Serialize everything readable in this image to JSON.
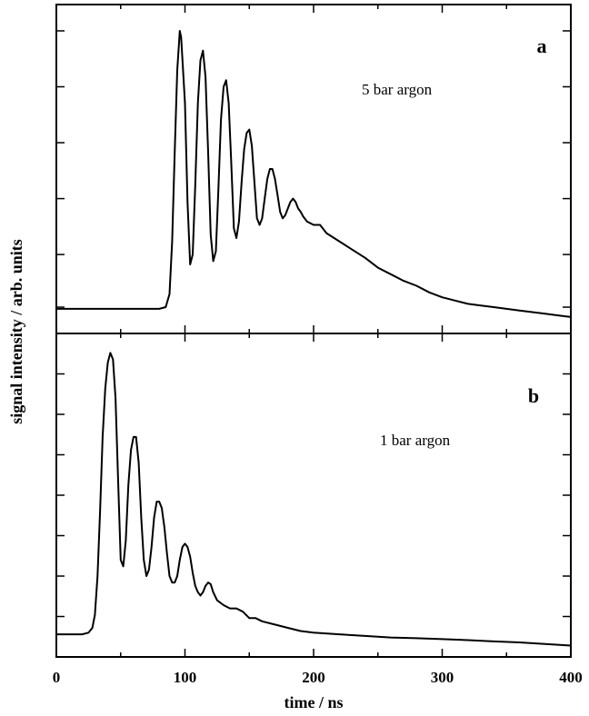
{
  "chart_data": [
    {
      "type": "line",
      "panel_label": "a",
      "annotation": "5 bar argon",
      "xlabel": "time / ns",
      "ylabel": "signal intensity / arb. units",
      "xlim": [
        0,
        400
      ],
      "ylim": [
        0,
        1
      ],
      "y_ticks_labeled": false,
      "series": [
        {
          "x": [
            0,
            20,
            40,
            60,
            80,
            85,
            88,
            90,
            92,
            94,
            96,
            97,
            100,
            102,
            104,
            106,
            108,
            110,
            112,
            114,
            116,
            118,
            120,
            122,
            124,
            126,
            128,
            130,
            132,
            134,
            136,
            138,
            140,
            142,
            144,
            146,
            148,
            150,
            152,
            154,
            156,
            158,
            160,
            162,
            164,
            166,
            168,
            170,
            172,
            174,
            176,
            178,
            180,
            182,
            184,
            186,
            188,
            190,
            192,
            195,
            200,
            205,
            210,
            220,
            230,
            240,
            250,
            260,
            270,
            280,
            290,
            300,
            310,
            320,
            330,
            340,
            350,
            360,
            370,
            380,
            390,
            400
          ],
          "y": [
            0.075,
            0.075,
            0.075,
            0.075,
            0.075,
            0.08,
            0.12,
            0.28,
            0.55,
            0.8,
            0.92,
            0.9,
            0.7,
            0.4,
            0.21,
            0.24,
            0.45,
            0.7,
            0.83,
            0.86,
            0.78,
            0.55,
            0.3,
            0.22,
            0.25,
            0.44,
            0.65,
            0.75,
            0.77,
            0.7,
            0.52,
            0.32,
            0.29,
            0.34,
            0.46,
            0.56,
            0.61,
            0.62,
            0.57,
            0.46,
            0.35,
            0.33,
            0.35,
            0.41,
            0.47,
            0.5,
            0.5,
            0.47,
            0.42,
            0.37,
            0.35,
            0.36,
            0.38,
            0.4,
            0.41,
            0.4,
            0.38,
            0.37,
            0.355,
            0.34,
            0.33,
            0.33,
            0.305,
            0.28,
            0.255,
            0.23,
            0.2,
            0.18,
            0.16,
            0.145,
            0.125,
            0.11,
            0.1,
            0.09,
            0.085,
            0.08,
            0.075,
            0.07,
            0.065,
            0.06,
            0.055,
            0.05
          ]
        }
      ]
    },
    {
      "type": "line",
      "panel_label": "b",
      "annotation": "1 bar argon",
      "xlabel": "time / ns",
      "ylabel": "signal intensity / arb. units",
      "xlim": [
        0,
        400
      ],
      "ylim": [
        0,
        1
      ],
      "x_ticks": [
        0,
        100,
        200,
        300,
        400
      ],
      "y_ticks_labeled": false,
      "series": [
        {
          "x": [
            0,
            10,
            20,
            25,
            28,
            30,
            32,
            34,
            36,
            38,
            40,
            42,
            44,
            46,
            48,
            50,
            52,
            54,
            56,
            58,
            60,
            62,
            64,
            66,
            68,
            70,
            72,
            74,
            76,
            78,
            80,
            82,
            84,
            86,
            88,
            90,
            92,
            94,
            96,
            98,
            100,
            102,
            104,
            106,
            108,
            110,
            112,
            114,
            116,
            118,
            120,
            122,
            125,
            130,
            135,
            140,
            145,
            150,
            155,
            160,
            170,
            180,
            190,
            200,
            220,
            240,
            260,
            280,
            300,
            320,
            340,
            360,
            380,
            400
          ],
          "y": [
            0.07,
            0.07,
            0.07,
            0.075,
            0.09,
            0.13,
            0.25,
            0.45,
            0.68,
            0.83,
            0.91,
            0.94,
            0.92,
            0.8,
            0.55,
            0.3,
            0.28,
            0.36,
            0.53,
            0.64,
            0.68,
            0.68,
            0.6,
            0.43,
            0.3,
            0.25,
            0.27,
            0.34,
            0.43,
            0.48,
            0.48,
            0.46,
            0.4,
            0.32,
            0.25,
            0.23,
            0.23,
            0.25,
            0.3,
            0.34,
            0.35,
            0.34,
            0.31,
            0.26,
            0.22,
            0.2,
            0.19,
            0.2,
            0.22,
            0.23,
            0.225,
            0.2,
            0.175,
            0.16,
            0.15,
            0.15,
            0.14,
            0.12,
            0.12,
            0.11,
            0.1,
            0.09,
            0.08,
            0.075,
            0.07,
            0.065,
            0.06,
            0.058,
            0.055,
            0.052,
            0.048,
            0.045,
            0.04,
            0.035
          ]
        }
      ]
    }
  ]
}
